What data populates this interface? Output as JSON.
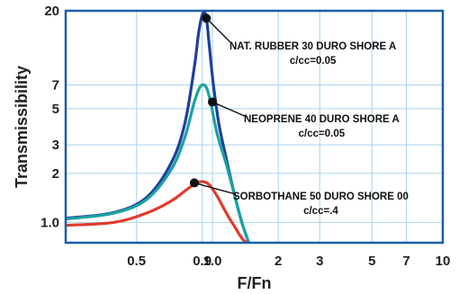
{
  "chart_data": {
    "type": "line",
    "xlabel": "F/Fn",
    "ylabel": "Transmissibility",
    "x_scale": "log",
    "y_scale": "log",
    "xlim": [
      0.25,
      10
    ],
    "ylim": [
      0.75,
      20
    ],
    "x_ticks": [
      {
        "value": 0.5,
        "label": "0.5"
      },
      {
        "value": 0.95,
        "label": "0.9"
      },
      {
        "value": 1.05,
        "label": "1.0"
      },
      {
        "value": 2,
        "label": "2"
      },
      {
        "value": 3,
        "label": "3"
      },
      {
        "value": 5,
        "label": "5"
      },
      {
        "value": 7,
        "label": "7"
      },
      {
        "value": 10,
        "label": "10"
      }
    ],
    "y_ticks": [
      {
        "value": 1.0,
        "label": "1.0"
      },
      {
        "value": 2,
        "label": "2"
      },
      {
        "value": 3,
        "label": "3"
      },
      {
        "value": 5,
        "label": "5"
      },
      {
        "value": 7,
        "label": "7"
      },
      {
        "value": 20,
        "label": "20"
      }
    ],
    "grid": true,
    "frame_color": "#1a5fa8",
    "grid_color": "#a9d3ee",
    "series": [
      {
        "color": "#1f3f9e",
        "points": [
          [
            0.25,
            1.06
          ],
          [
            0.4,
            1.15
          ],
          [
            0.55,
            1.42
          ],
          [
            0.7,
            2.3
          ],
          [
            0.8,
            4.0
          ],
          [
            0.88,
            9.0
          ],
          [
            0.92,
            15.0
          ],
          [
            0.96,
            19.5
          ],
          [
            0.99,
            18.0
          ],
          [
            1.02,
            12.0
          ],
          [
            1.06,
            7.0
          ],
          [
            1.12,
            4.0
          ],
          [
            1.2,
            2.5
          ],
          [
            1.3,
            1.5
          ],
          [
            1.4,
            1.0
          ],
          [
            1.5,
            0.75
          ]
        ]
      },
      {
        "color": "#1aa3a0",
        "points": [
          [
            0.25,
            1.05
          ],
          [
            0.4,
            1.14
          ],
          [
            0.55,
            1.38
          ],
          [
            0.7,
            2.1
          ],
          [
            0.8,
            3.3
          ],
          [
            0.88,
            5.5
          ],
          [
            0.93,
            6.8
          ],
          [
            0.97,
            7.0
          ],
          [
            1.0,
            6.5
          ],
          [
            1.04,
            5.2
          ],
          [
            1.1,
            3.5
          ],
          [
            1.2,
            2.3
          ],
          [
            1.3,
            1.5
          ],
          [
            1.4,
            1.0
          ],
          [
            1.5,
            0.75
          ]
        ]
      },
      {
        "color": "#e23a2c",
        "points": [
          [
            0.25,
            0.96
          ],
          [
            0.4,
            1.0
          ],
          [
            0.55,
            1.14
          ],
          [
            0.7,
            1.35
          ],
          [
            0.82,
            1.6
          ],
          [
            0.9,
            1.75
          ],
          [
            0.96,
            1.78
          ],
          [
            1.02,
            1.7
          ],
          [
            1.1,
            1.45
          ],
          [
            1.2,
            1.15
          ],
          [
            1.3,
            0.95
          ],
          [
            1.4,
            0.8
          ],
          [
            1.47,
            0.75
          ]
        ]
      }
    ],
    "markers": [
      {
        "x": 0.99,
        "y": 18.0
      },
      {
        "x": 1.05,
        "y": 5.5
      },
      {
        "x": 0.88,
        "y": 1.75
      }
    ],
    "annotations": [
      {
        "line1": "NAT. RUBBER 30 DURO SHORE  A",
        "line2": "c/cc=0.05"
      },
      {
        "line1": "NEOPRENE 40 DURO SHORE  A",
        "line2": "c/cc=0.05"
      },
      {
        "line1": "SORBOTHANE 50 DURO SHORE 00",
        "line2": "c/cc=.4"
      }
    ]
  }
}
